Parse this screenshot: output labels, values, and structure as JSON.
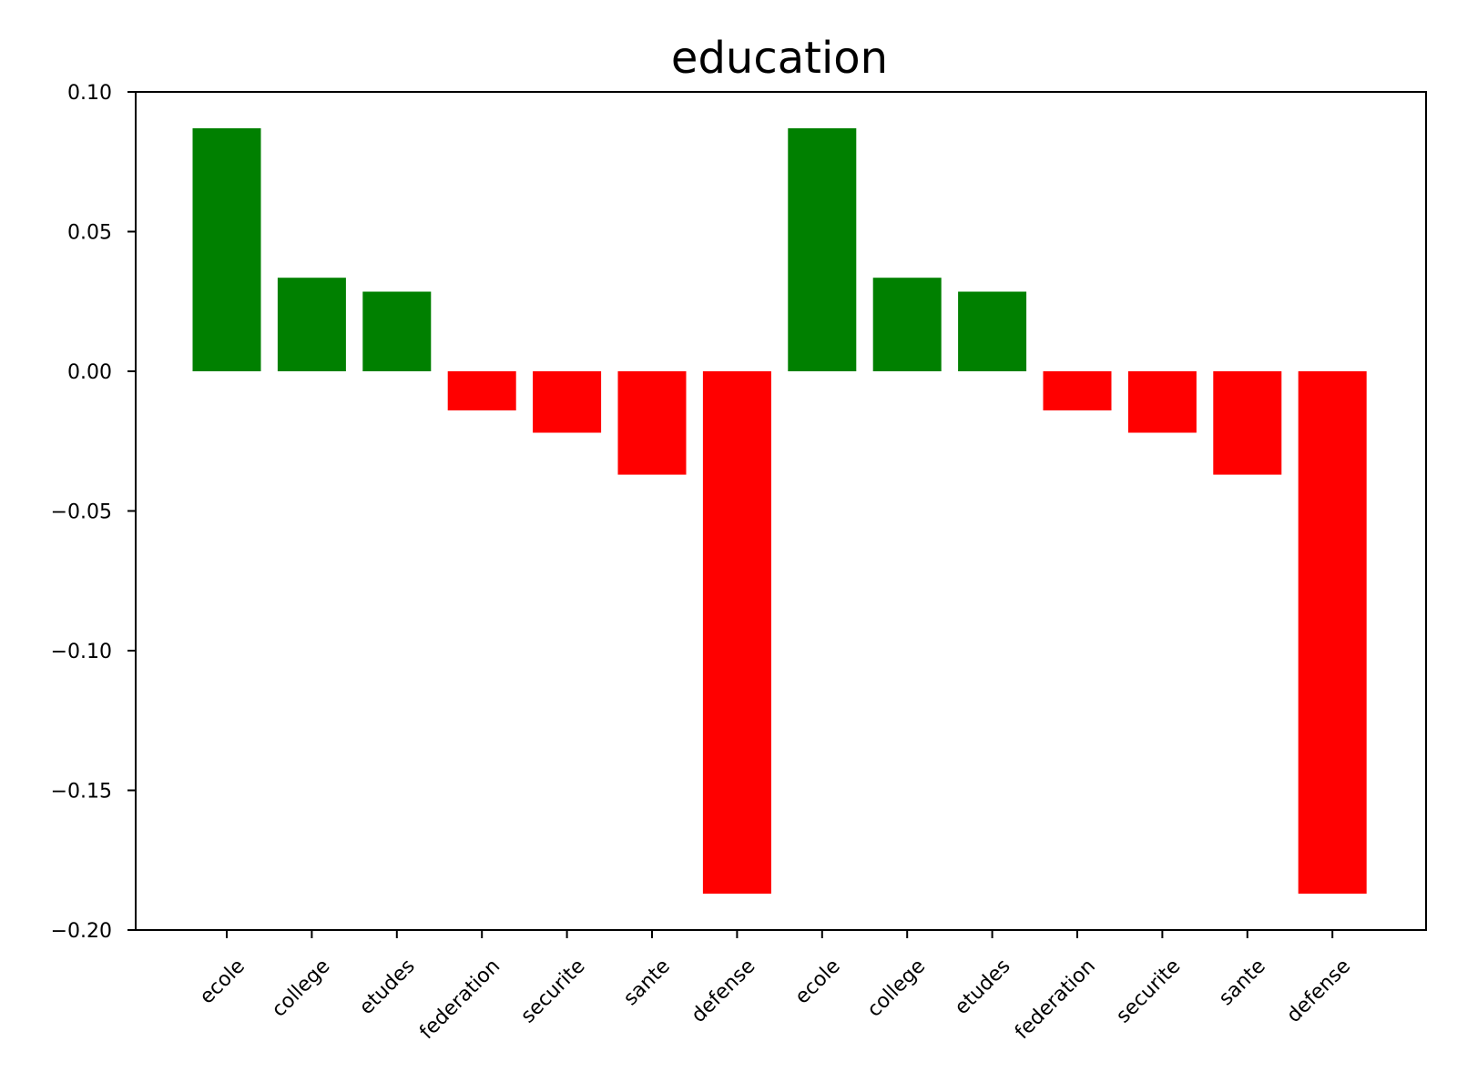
{
  "chart_data": {
    "type": "bar",
    "title": "education",
    "xlabel": "",
    "ylabel": "",
    "categories": [
      "ecole",
      "college",
      "etudes",
      "federation",
      "securite",
      "sante",
      "defense",
      "ecole",
      "college",
      "etudes",
      "federation",
      "securite",
      "sante",
      "defense"
    ],
    "values": [
      0.087,
      0.0335,
      0.0285,
      -0.014,
      -0.022,
      -0.037,
      -0.187,
      0.087,
      0.0335,
      0.0285,
      -0.014,
      -0.022,
      -0.037,
      -0.187
    ],
    "ylim": [
      -0.2,
      0.1
    ],
    "yticks": [
      0.1,
      0.05,
      0.0,
      -0.05,
      -0.1,
      -0.15,
      -0.2
    ],
    "ytick_labels": [
      "0.10",
      "0.05",
      "0.00",
      "−0.05",
      "−0.10",
      "−0.15",
      "−0.20"
    ],
    "grid": false,
    "legend": "none",
    "colors": {
      "positive": "#008000",
      "negative": "#ff0000",
      "axis": "#000000"
    },
    "xtick_rotation": 45
  }
}
